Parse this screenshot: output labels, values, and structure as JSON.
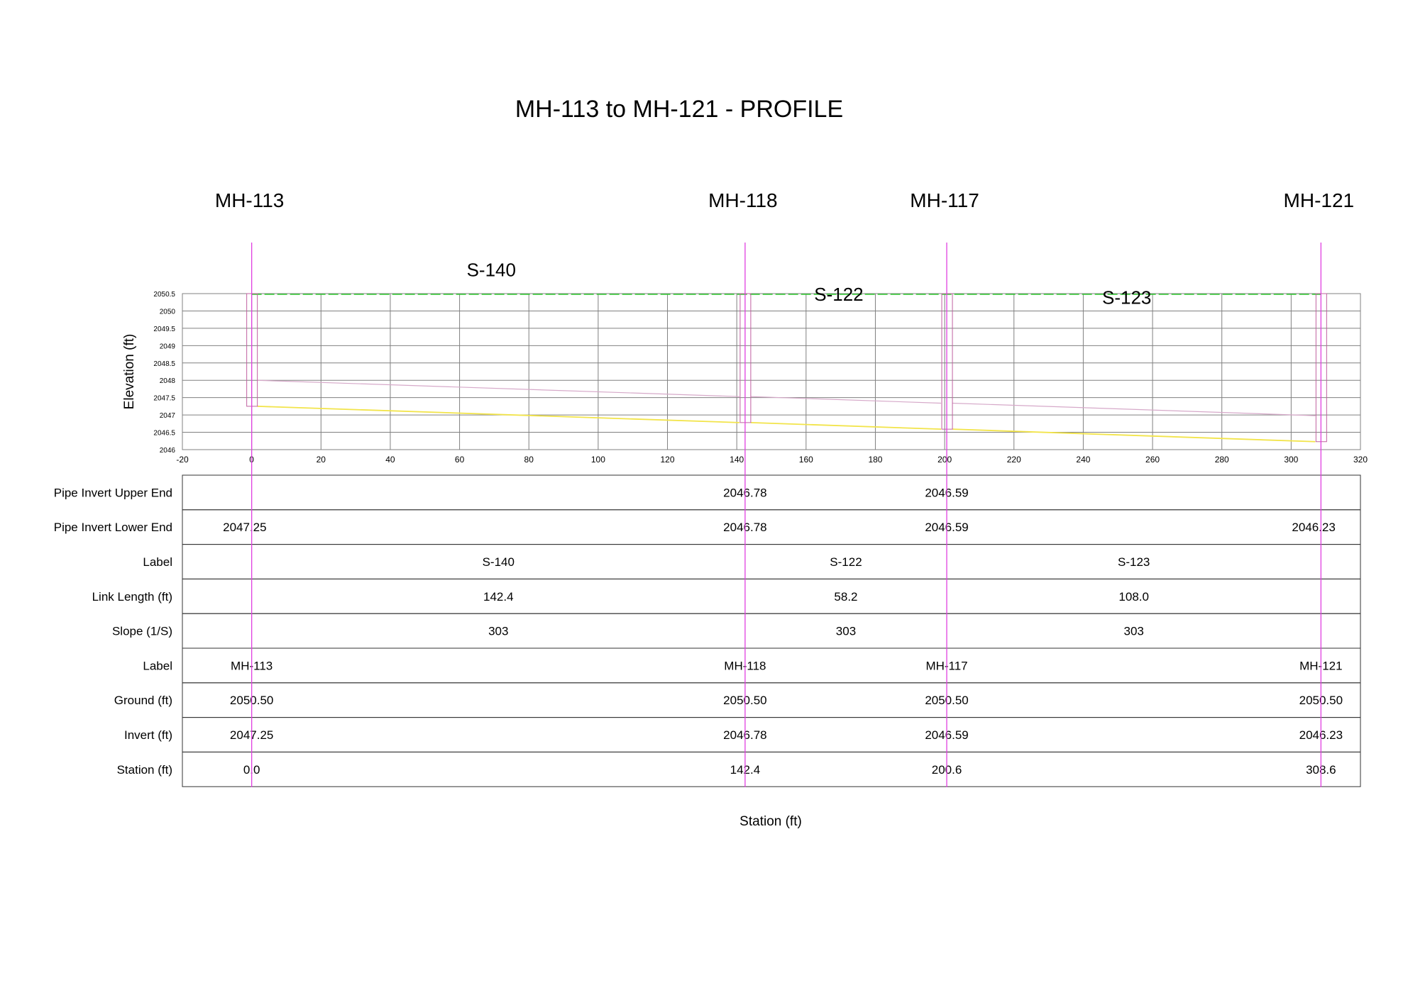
{
  "title": "MH-113 to MH-121 - PROFILE",
  "colors": {
    "background": "#ffffff",
    "grid": "#808080",
    "ground_line": "#33cc33",
    "invert_line": "#f2e44a",
    "crown_line": "#d6a9c9",
    "node_marker": "#e040e0",
    "manhole_box": "#c060a0",
    "text": "#000000"
  },
  "chart_data": {
    "type": "line",
    "title": "MH-113 to MH-121 - PROFILE",
    "xlabel": "Station (ft)",
    "ylabel": "Elevation (ft)",
    "xlim": [
      -20,
      320
    ],
    "ylim": [
      2046,
      2050.5
    ],
    "x_ticks": [
      "-20",
      "0",
      "20",
      "40",
      "60",
      "80",
      "100",
      "120",
      "140",
      "160",
      "180",
      "200",
      "220",
      "240",
      "260",
      "280",
      "300",
      "320"
    ],
    "y_ticks": [
      "2046",
      "2046.5",
      "2047",
      "2047.5",
      "2048",
      "2048.5",
      "2049",
      "2049.5",
      "2050",
      "2050.5"
    ],
    "grid": true,
    "nodes": [
      {
        "label": "MH-113",
        "station": 0.0,
        "ground": 2050.5,
        "invert": 2047.25
      },
      {
        "label": "MH-118",
        "station": 142.4,
        "ground": 2050.5,
        "invert": 2046.78
      },
      {
        "label": "MH-117",
        "station": 200.6,
        "ground": 2050.5,
        "invert": 2046.59
      },
      {
        "label": "MH-121",
        "station": 308.6,
        "ground": 2050.5,
        "invert": 2046.23
      }
    ],
    "links": [
      {
        "label": "S-140",
        "label_elev": 2051.0,
        "from_station": 0.0,
        "to_station": 142.4,
        "upstream_invert": 2047.25,
        "downstream_invert": 2046.78,
        "upstream_crown": 2048.0,
        "downstream_crown": 2047.53
      },
      {
        "label": "S-122",
        "label_elev": 2050.3,
        "from_station": 142.4,
        "to_station": 200.6,
        "upstream_invert": 2046.78,
        "downstream_invert": 2046.59,
        "upstream_crown": 2047.53,
        "downstream_crown": 2047.34
      },
      {
        "label": "S-123",
        "label_elev": 2050.2,
        "from_station": 200.6,
        "to_station": 308.6,
        "upstream_invert": 2046.59,
        "downstream_invert": 2046.23,
        "upstream_crown": 2047.34,
        "downstream_crown": 2046.98
      }
    ],
    "series": [
      {
        "name": "Ground",
        "x": [
          0,
          308.6
        ],
        "y": [
          2050.5,
          2050.5
        ]
      },
      {
        "name": "Invert",
        "x": [
          0,
          142.4,
          200.6,
          308.6
        ],
        "y": [
          2047.25,
          2046.78,
          2046.59,
          2046.23
        ]
      },
      {
        "name": "Crown",
        "x": [
          0,
          142.4,
          200.6,
          308.6
        ],
        "y": [
          2048.0,
          2047.53,
          2047.34,
          2046.98
        ]
      }
    ]
  },
  "table": {
    "rows": [
      {
        "header": "Pipe Invert Upper End",
        "cells": [
          {
            "station": 142.4,
            "text": "2046.78"
          },
          {
            "station": 200.6,
            "text": "2046.59"
          }
        ]
      },
      {
        "header": "Pipe Invert Lower End",
        "cells": [
          {
            "station": -2,
            "text": "2047.25"
          },
          {
            "station": 142.4,
            "text": "2046.78"
          },
          {
            "station": 200.6,
            "text": "2046.59"
          },
          {
            "station": 306.5,
            "text": "2046.23"
          }
        ]
      },
      {
        "header": "Label",
        "cells": [
          {
            "station": 71.2,
            "text": "S-140"
          },
          {
            "station": 171.5,
            "text": "S-122"
          },
          {
            "station": 254.6,
            "text": "S-123"
          }
        ]
      },
      {
        "header": "Link Length (ft)",
        "cells": [
          {
            "station": 71.2,
            "text": "142.4"
          },
          {
            "station": 171.5,
            "text": "58.2"
          },
          {
            "station": 254.6,
            "text": "108.0"
          }
        ]
      },
      {
        "header": "Slope (1/S)",
        "cells": [
          {
            "station": 71.2,
            "text": "303"
          },
          {
            "station": 171.5,
            "text": "303"
          },
          {
            "station": 254.6,
            "text": "303"
          }
        ]
      },
      {
        "header": "Label",
        "cells": [
          {
            "station": 0.0,
            "text": "MH-113"
          },
          {
            "station": 142.4,
            "text": "MH-118"
          },
          {
            "station": 200.6,
            "text": "MH-117"
          },
          {
            "station": 308.6,
            "text": "MH-121"
          }
        ]
      },
      {
        "header": "Ground (ft)",
        "cells": [
          {
            "station": 0.0,
            "text": "2050.50"
          },
          {
            "station": 142.4,
            "text": "2050.50"
          },
          {
            "station": 200.6,
            "text": "2050.50"
          },
          {
            "station": 308.6,
            "text": "2050.50"
          }
        ]
      },
      {
        "header": "Invert (ft)",
        "cells": [
          {
            "station": 0.0,
            "text": "2047.25"
          },
          {
            "station": 142.4,
            "text": "2046.78"
          },
          {
            "station": 200.6,
            "text": "2046.59"
          },
          {
            "station": 308.6,
            "text": "2046.23"
          }
        ]
      },
      {
        "header": "Station (ft)",
        "cells": [
          {
            "station": 0.0,
            "text": "0.0"
          },
          {
            "station": 142.4,
            "text": "142.4"
          },
          {
            "station": 200.6,
            "text": "200.6"
          },
          {
            "station": 308.6,
            "text": "308.6"
          }
        ]
      }
    ]
  }
}
